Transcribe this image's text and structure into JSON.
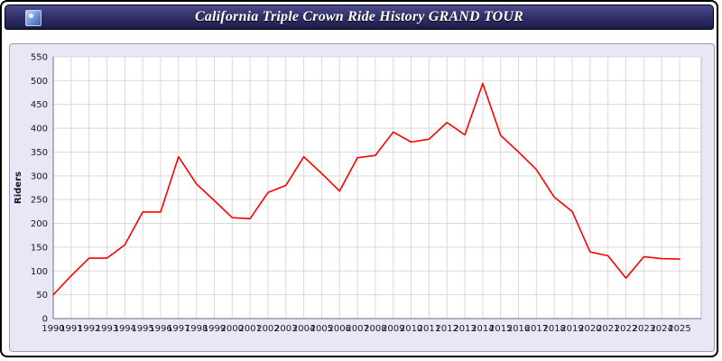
{
  "window": {
    "title": "California Triple Crown Ride History GRAND TOUR"
  },
  "chart_data": {
    "type": "line",
    "title": "California Triple Crown Ride History GRAND TOUR",
    "xlabel": "",
    "ylabel": "Riders",
    "ylim": [
      0,
      550
    ],
    "ytick_step": 50,
    "grid": true,
    "legend": "none",
    "categories": [
      "1990",
      "1991",
      "1992",
      "1993",
      "1994",
      "1995",
      "1996",
      "1997",
      "1998",
      "1999",
      "2000",
      "2001",
      "2002",
      "2003",
      "2004",
      "2005",
      "2006",
      "2007",
      "2008",
      "2009",
      "2010",
      "2011",
      "2012",
      "2013",
      "2014",
      "2015",
      "2016",
      "2017",
      "2018",
      "2019",
      "2020",
      "2021",
      "2022",
      "2023",
      "2024",
      "2025"
    ],
    "series": [
      {
        "name": "Riders",
        "color": "#ff0000",
        "values": [
          50,
          90,
          127,
          127,
          155,
          224,
          224,
          340,
          283,
          248,
          212,
          210,
          265,
          280,
          340,
          305,
          268,
          338,
          343,
          392,
          371,
          377,
          412,
          386,
          494,
          385,
          350,
          313,
          255,
          225,
          140,
          132,
          85,
          130,
          126,
          125
        ]
      }
    ],
    "colors": {
      "plot_bg": "#ffffff",
      "outer_bg": "#e7e7f6",
      "gridline": "#d9d9d9",
      "axis": "#6f6f8a",
      "tick_text": "#14142e",
      "line": "#ff0000"
    }
  }
}
